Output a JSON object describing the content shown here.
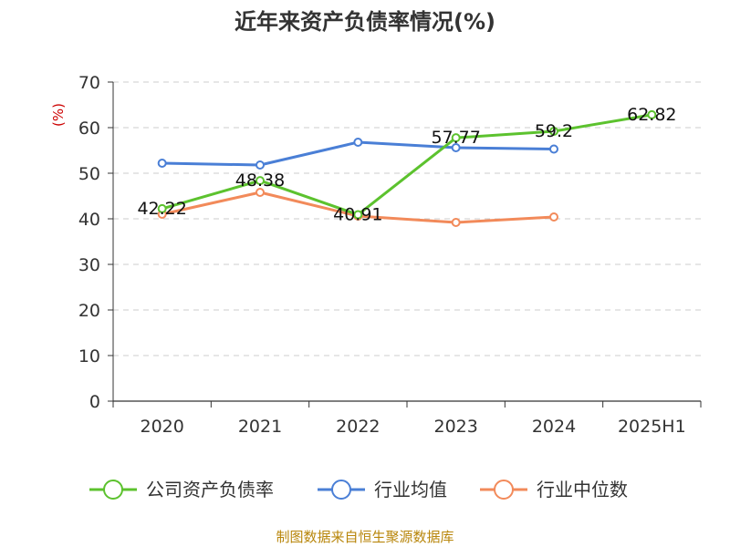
{
  "chart_data": {
    "type": "line",
    "title": "近年来资产负债率情况(%)",
    "ylabel": "(%)",
    "xlabel": "",
    "categories": [
      "2020",
      "2021",
      "2022",
      "2023",
      "2024",
      "2025H1"
    ],
    "ylim": [
      0,
      70
    ],
    "yticks": [
      0,
      10,
      20,
      30,
      40,
      50,
      60,
      70
    ],
    "grid": true,
    "legend_position": "bottom",
    "series": [
      {
        "name": "公司资产负债率",
        "color": "#5cc22e",
        "values": [
          42.22,
          48.38,
          40.91,
          57.77,
          59.2,
          62.82
        ],
        "labels": [
          "42.22",
          "48.38",
          "40.91",
          "57.77",
          "59.2",
          "62.82"
        ]
      },
      {
        "name": "行业均值",
        "color": "#4a7fd6",
        "values": [
          52.2,
          51.8,
          56.8,
          55.6,
          55.3,
          null
        ]
      },
      {
        "name": "行业中位数",
        "color": "#f28a5a",
        "values": [
          41.0,
          45.8,
          40.6,
          39.2,
          40.4,
          null
        ]
      }
    ],
    "source": "制图数据来自恒生聚源数据库"
  }
}
